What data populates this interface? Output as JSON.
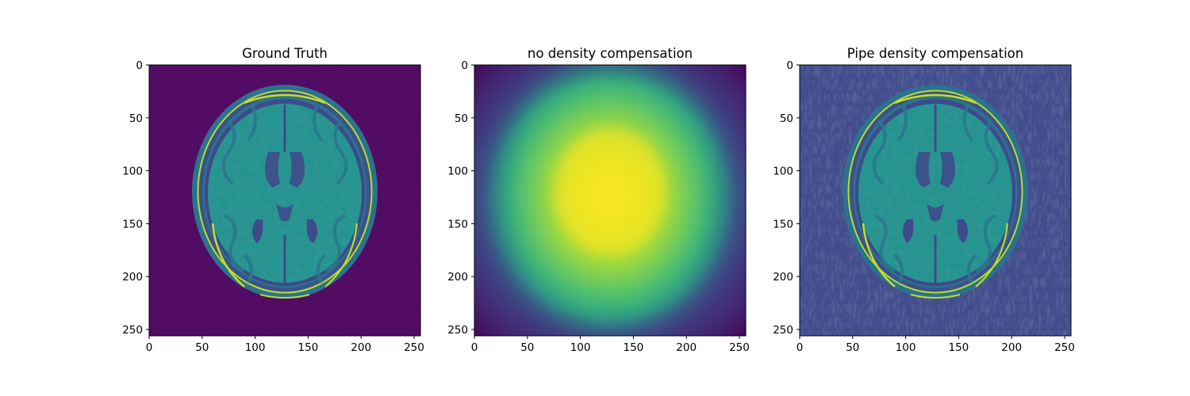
{
  "figure": {
    "panels": [
      {
        "title": "Ground Truth",
        "variant": "ground-truth",
        "xticks": [
          "0",
          "50",
          "100",
          "150",
          "200",
          "250"
        ],
        "yticks": [
          "0",
          "50",
          "100",
          "150",
          "200",
          "250"
        ]
      },
      {
        "title": "no density compensation",
        "variant": "blurred",
        "xticks": [
          "0",
          "50",
          "100",
          "150",
          "200",
          "250"
        ],
        "yticks": [
          "0",
          "50",
          "100",
          "150",
          "200",
          "250"
        ]
      },
      {
        "title": "Pipe density compensation",
        "variant": "compensated",
        "xticks": [
          "0",
          "50",
          "100",
          "150",
          "200",
          "250"
        ],
        "yticks": [
          "0",
          "50",
          "100",
          "150",
          "200",
          "250"
        ]
      }
    ],
    "image_range": [
      0,
      256
    ],
    "colormap": "viridis",
    "colors": {
      "background_dark": "#440154",
      "tissue_teal": "#2a788e",
      "tissue_green": "#22a884",
      "bright_yellow": "#fde725",
      "skull_blue": "#3b528b"
    }
  }
}
